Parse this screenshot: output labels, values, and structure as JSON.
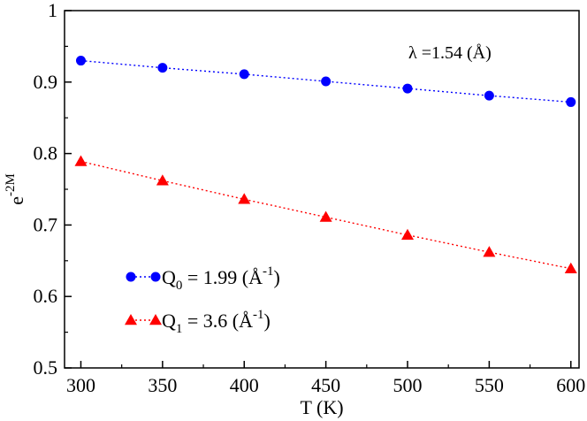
{
  "chart_data": {
    "type": "line",
    "title": "",
    "xlabel": "T (K)",
    "ylabel_base": "e",
    "ylabel_exp": "-2M",
    "xlim": [
      290,
      605
    ],
    "ylim": [
      0.5,
      1.0
    ],
    "xticks": [
      300,
      350,
      400,
      450,
      500,
      550,
      600
    ],
    "yticks": [
      0.5,
      0.6,
      0.7,
      0.8,
      0.9,
      1.0
    ],
    "xtick_labels": [
      "300",
      "350",
      "400",
      "450",
      "500",
      "550",
      "600"
    ],
    "ytick_labels": [
      "0.5",
      "0.6",
      "0.7",
      "0.8",
      "0.9",
      "1"
    ],
    "x": [
      300,
      350,
      400,
      450,
      500,
      550,
      600
    ],
    "series": [
      {
        "name": "Q0 = 1.99 (Å-1)",
        "label_main": "Q",
        "label_sub": "0",
        "label_value": " = 1.99 (",
        "label_unit": "Å",
        "label_sup": "-1",
        "label_close": ")",
        "values": [
          0.93,
          0.92,
          0.911,
          0.901,
          0.891,
          0.881,
          0.872
        ],
        "color": "#0000ff",
        "marker": "circle"
      },
      {
        "name": "Q1 = 3.6 (Å-1)",
        "label_main": "Q",
        "label_sub": "1",
        "label_value": " = 3.6 (",
        "label_unit": "Å",
        "label_sup": "-1",
        "label_close": ")",
        "values": [
          0.789,
          0.762,
          0.736,
          0.711,
          0.686,
          0.662,
          0.639
        ],
        "color": "#ff0000",
        "marker": "triangle"
      }
    ],
    "annotation": "λ =1.54 (Å)",
    "legend_position": "bottom-left"
  }
}
